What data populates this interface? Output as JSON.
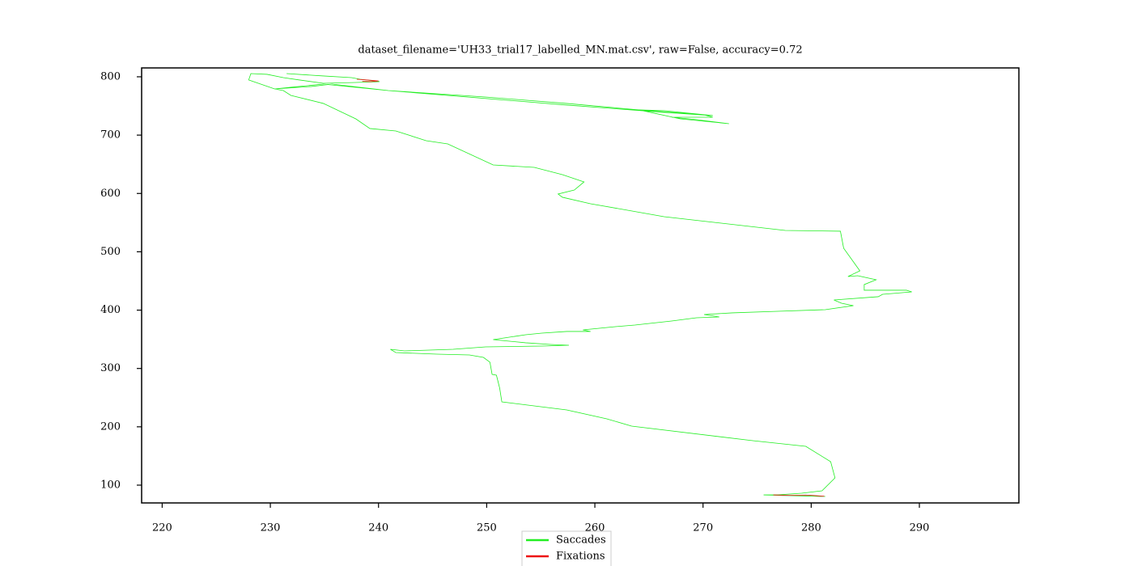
{
  "chart_data": {
    "type": "line",
    "title": "dataset_filename='UH33_trial17_labelled_MN.mat.csv', raw=False, accuracy=0.72",
    "xlim": [
      218.1,
      299.2
    ],
    "ylim": [
      69.5,
      815.2
    ],
    "xticks": [
      220,
      230,
      240,
      250,
      260,
      270,
      280,
      290
    ],
    "yticks": [
      100,
      200,
      300,
      400,
      500,
      600,
      700,
      800
    ],
    "legend": "lower center",
    "series": [
      {
        "name": "Saccades",
        "color": "#22ee22",
        "x": [
          231.5,
          234.9,
          237.5,
          238.3,
          240.1,
          237.9,
          234.9,
          232.7,
          231.2,
          229.7,
          228.2,
          228.0,
          230.4,
          233.8,
          235.7,
          240.9,
          249.9,
          257.4,
          264.9,
          270.1,
          270.9,
          267.1,
          269.4,
          272.4,
          267.9,
          264.1,
          266.4,
          270.9,
          266.4,
          257.4,
          240.9,
          234.9,
          231.9,
          230.4,
          231.2,
          231.9,
          234.9,
          237.9,
          239.2,
          241.6,
          244.4,
          246.4,
          250.6,
          254.4,
          257.0,
          259.0,
          258.1,
          256.6,
          257.0,
          259.6,
          266.4,
          277.6,
          282.7,
          283.0,
          284.5,
          283.4,
          284.3,
          286.0,
          284.9,
          284.9,
          288.8,
          289.3,
          286.6,
          286.2,
          282.1,
          282.8,
          283.9,
          281.3,
          276.9,
          272.7,
          270.1,
          271.5,
          269.4,
          267.1,
          263.7,
          261.9,
          258.9,
          259.6,
          257.4,
          255.1,
          253.6,
          250.6,
          253.6,
          255.9,
          257.6,
          255.1,
          249.9,
          246.9,
          242.4,
          241.1,
          241.6,
          245.4,
          248.4,
          249.7,
          250.3,
          250.5,
          250.9,
          251.2,
          251.4,
          257.4,
          261.1,
          263.4,
          274.6,
          279.5,
          281.8,
          282.2,
          281.0,
          279.1,
          276.9,
          275.6,
          278.4,
          281.3
        ],
        "values": [
          805.5,
          801.4,
          798.6,
          795.8,
          791.7,
          790.3,
          788.9,
          794.5,
          798.6,
          804.2,
          805.5,
          794.5,
          779.2,
          783.4,
          787.5,
          776.4,
          765.3,
          754.3,
          741.8,
          734.8,
          730.7,
          730.7,
          726.5,
          719.6,
          727.9,
          743.2,
          741.8,
          733.5,
          739.0,
          751.5,
          776.4,
          787.5,
          782.0,
          779.2,
          776.4,
          768.1,
          754.3,
          727.9,
          711.3,
          707.1,
          690.5,
          684.9,
          648.9,
          644.7,
          632.3,
          619.8,
          605.9,
          599.0,
          593.5,
          582.4,
          560.2,
          536.6,
          535.3,
          506.1,
          467.3,
          457.6,
          459.0,
          452.1,
          443.8,
          434.1,
          434.1,
          431.3,
          427.1,
          423.0,
          417.4,
          411.9,
          407.7,
          400.8,
          398.0,
          395.3,
          392.5,
          388.3,
          386.9,
          381.4,
          374.4,
          371.7,
          366.1,
          363.4,
          363.4,
          360.6,
          357.8,
          349.5,
          344.0,
          341.2,
          339.8,
          338.4,
          337.0,
          332.8,
          330.1,
          332.8,
          327.3,
          324.5,
          323.2,
          319.0,
          310.7,
          289.9,
          288.5,
          266.3,
          242.7,
          228.9,
          213.6,
          201.2,
          176.2,
          166.5,
          140.2,
          112.4,
          90.3,
          86.1,
          83.3,
          83.3,
          81.9,
          80.6
        ]
      },
      {
        "name": "Fixations",
        "color": "#ee1111",
        "x": [
          238.0,
          239.0,
          240.0,
          239.3,
          238.5,
          null,
          276.5,
          278.0,
          279.5,
          280.5,
          281.2
        ],
        "values": [
          795.8,
          794.5,
          792.8,
          791.7,
          792.2,
          null,
          83.3,
          82.5,
          83.0,
          81.9,
          81.0
        ]
      }
    ]
  }
}
